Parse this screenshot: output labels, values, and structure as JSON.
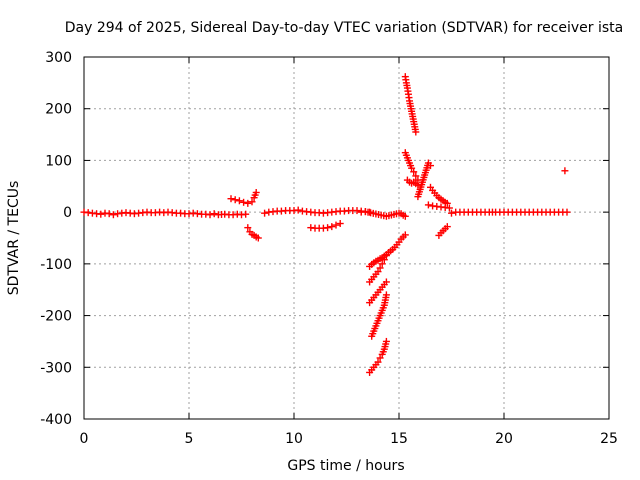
{
  "chart_data": {
    "type": "scatter",
    "title": "Day 294 of 2025, Sidereal Day-to-day VTEC variation (SDTVAR) for receiver ista",
    "xlabel": "GPS time / hours",
    "ylabel": "SDTVAR / TECUs",
    "xlim": [
      0,
      25
    ],
    "ylim": [
      -400,
      300
    ],
    "x_ticks": [
      0,
      5,
      10,
      15,
      20,
      25
    ],
    "y_ticks": [
      300,
      200,
      100,
      0,
      -100,
      -200,
      -300,
      -400
    ],
    "x_tick_labels": [
      "0",
      "5",
      "10",
      "15",
      "20",
      "25"
    ],
    "y_tick_labels": [
      "300",
      "200",
      "100",
      "0",
      "-100",
      "-200",
      "-300",
      "-400"
    ],
    "grid": true,
    "marker": "+",
    "color": "#ff0000",
    "series": [
      {
        "name": "baseline-early",
        "x": [
          0.0,
          0.2,
          0.4,
          0.6,
          0.8,
          1.0,
          1.2,
          1.4,
          1.6,
          1.8,
          2.0,
          2.2,
          2.4,
          2.6,
          2.8,
          3.0,
          3.2,
          3.4,
          3.6,
          3.8,
          4.0,
          4.2,
          4.4,
          4.6,
          4.8,
          5.0,
          5.2,
          5.4,
          5.6,
          5.8,
          6.0,
          6.2,
          6.4,
          6.7,
          6.9,
          7.1,
          7.3,
          7.5,
          7.7
        ],
        "y": [
          0,
          -1,
          -2,
          -3,
          -4,
          -2,
          -3,
          -5,
          -3,
          -2,
          -1,
          -2,
          -3,
          -2,
          -1,
          0,
          -1,
          -1,
          0,
          -1,
          0,
          -1,
          -2,
          -2,
          -3,
          -3,
          -2,
          -3,
          -4,
          -4,
          -5,
          -3,
          -5,
          -4,
          -5,
          -5,
          -4,
          -5,
          -4
        ]
      },
      {
        "name": "arc-7h-upper",
        "x": [
          7.0,
          7.2,
          7.4,
          7.6,
          7.8,
          8.0,
          8.1,
          8.2
        ],
        "y": [
          26,
          24,
          22,
          19,
          17,
          20,
          28,
          38
        ]
      },
      {
        "name": "arc-8h-lower",
        "x": [
          7.8,
          7.9,
          8.0,
          8.1,
          8.2,
          8.3
        ],
        "y": [
          -30,
          -38,
          -43,
          -45,
          -48,
          -50
        ]
      },
      {
        "name": "baseline-mid",
        "x": [
          8.6,
          8.8,
          9.0,
          9.2,
          9.4,
          9.6,
          9.8,
          10.0,
          10.2,
          10.4,
          10.6,
          10.8,
          11.0,
          11.2,
          11.4,
          11.6,
          11.8,
          12.0,
          12.2,
          12.4,
          12.6,
          12.8,
          13.0,
          13.2,
          13.4,
          13.6
        ],
        "y": [
          -2,
          0,
          1,
          2,
          2,
          3,
          3,
          3,
          4,
          2,
          1,
          0,
          -1,
          -1,
          -2,
          -1,
          0,
          1,
          2,
          2,
          3,
          3,
          3,
          2,
          1,
          0
        ]
      },
      {
        "name": "dip-11h",
        "x": [
          10.8,
          11.0,
          11.2,
          11.4,
          11.6,
          11.8,
          12.0,
          12.2
        ],
        "y": [
          -30,
          -31,
          -31,
          -31,
          -30,
          -28,
          -25,
          -22
        ]
      },
      {
        "name": "points-14h",
        "x": [
          13.2,
          13.4,
          14.4,
          15.0,
          15.1,
          15.2,
          15.3
        ],
        "y": [
          0,
          1,
          -8,
          -2,
          -3,
          -6,
          -8
        ]
      },
      {
        "name": "streak-14h-upper",
        "x": [
          13.6,
          13.7,
          13.8,
          13.9,
          14.0,
          14.1,
          14.2,
          14.3,
          14.4,
          14.5,
          14.6,
          14.7,
          14.8,
          14.9,
          15.0,
          15.1,
          15.2,
          15.3
        ],
        "y": [
          -105,
          -101,
          -98,
          -95,
          -93,
          -90,
          -88,
          -85,
          -82,
          -78,
          -75,
          -72,
          -68,
          -63,
          -58,
          -52,
          -48,
          -44
        ]
      },
      {
        "name": "streak-14h-a",
        "x": [
          13.6,
          13.7,
          13.8,
          13.9,
          14.0,
          14.1,
          14.2,
          14.3,
          14.4
        ],
        "y": [
          -135,
          -130,
          -125,
          -120,
          -115,
          -108,
          -100,
          -92,
          -84
        ]
      },
      {
        "name": "streak-14h-b",
        "x": [
          13.6,
          13.7,
          13.8,
          13.9,
          14.0,
          14.1,
          14.2,
          14.3,
          14.4
        ],
        "y": [
          -175,
          -170,
          -165,
          -160,
          -155,
          -150,
          -145,
          -140,
          -135
        ]
      },
      {
        "name": "streak-14h-c",
        "x": [
          13.7,
          13.8,
          13.9,
          14.0,
          14.1,
          14.2,
          14.3,
          14.4
        ],
        "y": [
          -240,
          -230,
          -220,
          -210,
          -200,
          -190,
          -180,
          -160
        ]
      },
      {
        "name": "streak-14h-d",
        "x": [
          13.6,
          13.7,
          13.8,
          13.9,
          14.0,
          14.1,
          14.2,
          14.3,
          14.4
        ],
        "y": [
          -310,
          -305,
          -300,
          -295,
          -290,
          -282,
          -275,
          -265,
          -250
        ]
      },
      {
        "name": "branch-15h-top",
        "x": [
          15.3,
          15.35,
          15.4,
          15.45,
          15.5,
          15.55,
          15.6,
          15.65,
          15.7,
          15.75,
          15.8
        ],
        "y": [
          262,
          250,
          240,
          228,
          215,
          205,
          195,
          185,
          175,
          165,
          155
        ]
      },
      {
        "name": "branch-15h-mid",
        "x": [
          15.3,
          15.4,
          15.5,
          15.6,
          15.7,
          15.8,
          15.9
        ],
        "y": [
          115,
          105,
          95,
          85,
          78,
          70,
          62
        ]
      },
      {
        "name": "branch-15h-low",
        "x": [
          15.4,
          15.5,
          15.6,
          15.7,
          15.8,
          15.9
        ],
        "y": [
          62,
          58,
          56,
          58,
          55,
          52
        ]
      },
      {
        "name": "points-16h",
        "x": [
          15.9,
          16.4,
          16.5
        ],
        "y": [
          30,
          95,
          90
        ]
      },
      {
        "name": "tail-16h",
        "x": [
          16.5,
          16.6,
          16.7,
          16.8,
          16.9,
          17.0,
          17.1,
          17.2,
          17.3
        ],
        "y": [
          48,
          42,
          37,
          32,
          28,
          25,
          22,
          19,
          17
        ]
      },
      {
        "name": "tail-17h-flat",
        "x": [
          16.4,
          16.6,
          16.8,
          17.0,
          17.2,
          17.4
        ],
        "y": [
          14,
          12,
          11,
          10,
          9,
          8
        ]
      },
      {
        "name": "arc-17h-lower",
        "x": [
          16.9,
          17.0,
          17.1,
          17.2,
          17.3
        ],
        "y": [
          -45,
          -40,
          -36,
          -32,
          -28
        ]
      },
      {
        "name": "baseline-late",
        "x": [
          17.5,
          17.7,
          17.9,
          18.1,
          18.3,
          18.5,
          18.7,
          18.9,
          19.1,
          19.3,
          19.6,
          19.8,
          20.0,
          20.2,
          20.4,
          20.6,
          20.8,
          21.0,
          21.2,
          21.4,
          21.6,
          21.8,
          22.0,
          22.2,
          22.4,
          22.6,
          22.8,
          23.0
        ],
        "y": [
          -2,
          0,
          0,
          0,
          0,
          0,
          0,
          0,
          0,
          0,
          0,
          0,
          0,
          0,
          0,
          0,
          0,
          0,
          0,
          0,
          0,
          0,
          0,
          0,
          0,
          0,
          0,
          0
        ]
      },
      {
        "name": "outlier-23h",
        "x": [
          22.9
        ],
        "y": [
          80
        ]
      }
    ]
  }
}
